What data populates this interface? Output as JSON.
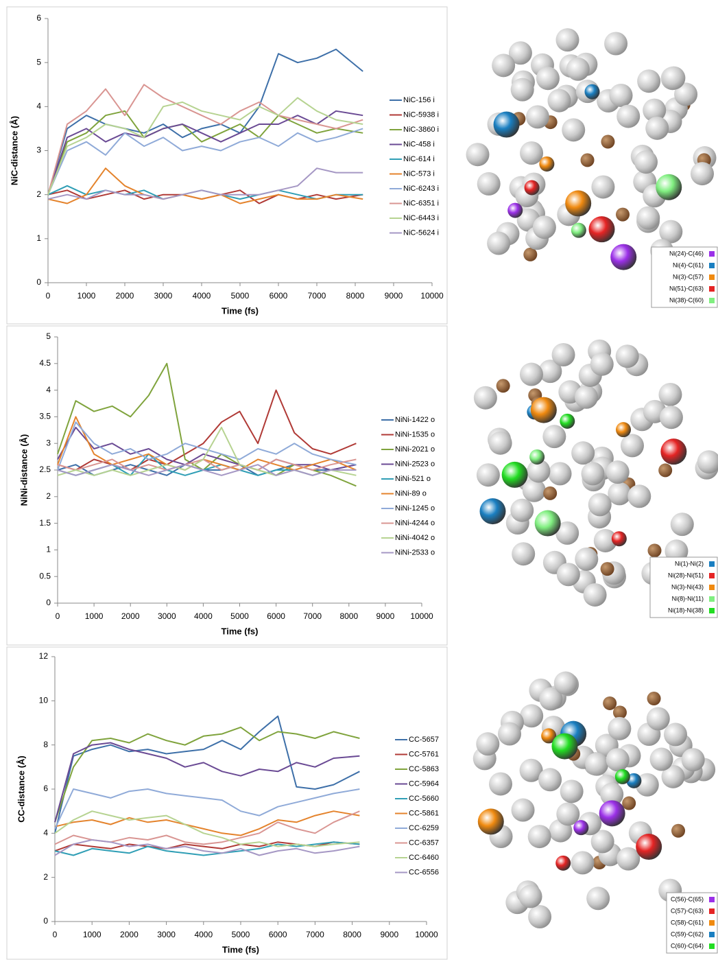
{
  "chart_data": [
    {
      "type": "line",
      "ylabel": "NiC-distance (Å)",
      "xlabel": "Time (fs)",
      "legend": "right",
      "xlim": [
        0,
        10000
      ],
      "xticks": [
        0,
        1000,
        2000,
        3000,
        4000,
        5000,
        6000,
        7000,
        8000,
        9000,
        10000
      ],
      "ylim": [
        0,
        6
      ],
      "yticks": [
        0,
        1,
        2,
        3,
        4,
        5,
        6
      ],
      "x": [
        0,
        500,
        1000,
        1500,
        2000,
        2500,
        3000,
        3500,
        4000,
        4500,
        5000,
        5500,
        6000,
        6500,
        7000,
        7500,
        8200
      ],
      "series": [
        {
          "name": "NiC-156 i",
          "color": "#3d6fa8",
          "values": [
            2,
            3.5,
            3.8,
            3.6,
            3.5,
            3.4,
            3.6,
            3.3,
            3.5,
            3.6,
            3.4,
            4.0,
            5.2,
            5.0,
            5.1,
            5.3,
            4.8
          ]
        },
        {
          "name": "NiC-5938 i",
          "color": "#b03a36",
          "values": [
            2,
            2.1,
            1.9,
            2.0,
            2.1,
            1.9,
            2.0,
            2.0,
            1.9,
            2.0,
            2.1,
            1.8,
            2.0,
            1.9,
            2.0,
            1.9,
            2.0
          ]
        },
        {
          "name": "NiC-3860 i",
          "color": "#7fa33c",
          "values": [
            2,
            3.2,
            3.4,
            3.8,
            3.9,
            3.3,
            3.5,
            3.6,
            3.2,
            3.4,
            3.6,
            3.3,
            3.8,
            3.6,
            3.4,
            3.5,
            3.4
          ]
        },
        {
          "name": "NiC-458 i",
          "color": "#6a4a94",
          "values": [
            2,
            3.3,
            3.5,
            3.2,
            3.4,
            3.3,
            3.5,
            3.6,
            3.4,
            3.2,
            3.4,
            3.6,
            3.6,
            3.8,
            3.6,
            3.9,
            3.8
          ]
        },
        {
          "name": "NiC-614 i",
          "color": "#2f9eb5",
          "values": [
            2,
            2.2,
            2.0,
            2.1,
            2.0,
            2.1,
            1.9,
            2.0,
            2.1,
            2.0,
            1.9,
            2.0,
            2.1,
            2.0,
            1.9,
            2.0,
            2.0
          ]
        },
        {
          "name": "NiC-573 i",
          "color": "#e4832c",
          "values": [
            1.9,
            1.8,
            2.0,
            2.6,
            2.2,
            2.0,
            1.9,
            2.0,
            1.9,
            2.0,
            1.8,
            1.9,
            2.0,
            1.9,
            1.9,
            2.0,
            1.9
          ]
        },
        {
          "name": "NiC-6243 i",
          "color": "#8faad8",
          "values": [
            2,
            3.0,
            3.2,
            2.9,
            3.4,
            3.1,
            3.3,
            3.0,
            3.1,
            3.0,
            3.2,
            3.3,
            3.1,
            3.4,
            3.2,
            3.3,
            3.5
          ]
        },
        {
          "name": "NiC-6351 i",
          "color": "#d99592",
          "values": [
            2,
            3.6,
            3.9,
            4.4,
            3.8,
            4.5,
            4.2,
            4.0,
            3.8,
            3.6,
            3.9,
            4.1,
            3.8,
            3.7,
            3.6,
            3.5,
            3.7
          ]
        },
        {
          "name": "NiC-6443 i",
          "color": "#b6d391",
          "values": [
            2,
            3.1,
            3.3,
            3.6,
            3.5,
            3.3,
            4.0,
            4.1,
            3.9,
            3.8,
            3.7,
            4.0,
            3.8,
            4.2,
            3.9,
            3.7,
            3.6
          ]
        },
        {
          "name": "NiC-5624 i",
          "color": "#a597c4",
          "values": [
            1.9,
            2.0,
            1.9,
            2.1,
            2.0,
            2.0,
            1.9,
            2.0,
            2.1,
            2.0,
            2.0,
            2.0,
            2.1,
            2.2,
            2.6,
            2.5,
            2.5
          ]
        }
      ]
    },
    {
      "type": "line",
      "ylabel": "NiNi-distance (Å)",
      "xlabel": "Time (fs)",
      "legend": "right",
      "xlim": [
        0,
        10000
      ],
      "xticks": [
        0,
        1000,
        2000,
        3000,
        4000,
        5000,
        6000,
        7000,
        8000,
        9000,
        10000
      ],
      "ylim": [
        0,
        5
      ],
      "yticks": [
        0,
        0.5,
        1,
        1.5,
        2,
        2.5,
        3,
        3.5,
        4,
        4.5,
        5
      ],
      "x": [
        0,
        500,
        1000,
        1500,
        2000,
        2500,
        3000,
        3500,
        4000,
        4500,
        5000,
        5500,
        6000,
        6500,
        7000,
        7500,
        8200
      ],
      "series": [
        {
          "name": "NiNi-1422 o",
          "color": "#3d6fa8",
          "values": [
            2.5,
            2.6,
            2.4,
            2.5,
            2.6,
            2.5,
            2.4,
            2.6,
            2.5,
            2.5,
            2.6,
            2.4,
            2.5,
            2.6,
            2.5,
            2.5,
            2.6
          ]
        },
        {
          "name": "NiNi-1535 o",
          "color": "#b03a36",
          "values": [
            2.6,
            2.5,
            2.7,
            2.6,
            2.5,
            2.7,
            2.6,
            2.8,
            3.0,
            3.4,
            3.6,
            3.0,
            4.0,
            3.2,
            2.9,
            2.8,
            3.0
          ]
        },
        {
          "name": "NiNi-2021 o",
          "color": "#7fa33c",
          "values": [
            2.8,
            3.8,
            3.6,
            3.7,
            3.5,
            3.9,
            4.5,
            2.7,
            2.5,
            2.8,
            2.6,
            2.5,
            2.4,
            2.6,
            2.5,
            2.4,
            2.2
          ]
        },
        {
          "name": "NiNi-2523 o",
          "color": "#6a4a94",
          "values": [
            2.7,
            3.3,
            2.9,
            3.0,
            2.8,
            2.9,
            2.7,
            2.6,
            2.8,
            2.7,
            2.6,
            2.5,
            2.7,
            2.6,
            2.6,
            2.5,
            2.6
          ]
        },
        {
          "name": "NiNi-521 o",
          "color": "#2f9eb5",
          "values": [
            2.5,
            2.4,
            2.5,
            2.6,
            2.4,
            2.8,
            2.5,
            2.4,
            2.5,
            2.6,
            2.5,
            2.4,
            2.5,
            2.5,
            2.4,
            2.5,
            2.5
          ]
        },
        {
          "name": "NiNi-89 o",
          "color": "#e4832c",
          "values": [
            2.6,
            3.5,
            2.8,
            2.6,
            2.7,
            2.8,
            2.6,
            2.5,
            2.7,
            2.6,
            2.5,
            2.7,
            2.6,
            2.5,
            2.6,
            2.7,
            2.5
          ]
        },
        {
          "name": "NiNi-1245 o",
          "color": "#8faad8",
          "values": [
            2.5,
            3.4,
            3.0,
            2.8,
            2.9,
            2.7,
            2.8,
            3.0,
            2.9,
            2.8,
            2.7,
            2.9,
            2.8,
            3.0,
            2.8,
            2.7,
            2.6
          ]
        },
        {
          "name": "NiNi-4244 o",
          "color": "#d99592",
          "values": [
            2.6,
            2.5,
            2.6,
            2.7,
            2.5,
            2.6,
            2.5,
            2.6,
            2.7,
            2.5,
            2.6,
            2.5,
            2.7,
            2.6,
            2.5,
            2.6,
            2.7
          ]
        },
        {
          "name": "NiNi-4042 o",
          "color": "#b6d391",
          "values": [
            2.4,
            2.5,
            2.4,
            2.5,
            2.4,
            2.5,
            2.6,
            2.5,
            2.7,
            3.3,
            2.6,
            2.5,
            2.4,
            2.5,
            2.4,
            2.5,
            2.4
          ]
        },
        {
          "name": "NiNi-2533 o",
          "color": "#a597c4",
          "values": [
            2.5,
            2.4,
            2.5,
            2.6,
            2.5,
            2.4,
            2.5,
            2.6,
            2.5,
            2.4,
            2.5,
            2.6,
            2.4,
            2.5,
            2.4,
            2.5,
            2.5
          ]
        }
      ]
    },
    {
      "type": "line",
      "ylabel": "CC-distance (Å)",
      "xlabel": "Time (fs)",
      "legend": "right",
      "xlim": [
        0,
        10000
      ],
      "xticks": [
        0,
        1000,
        2000,
        3000,
        4000,
        5000,
        6000,
        7000,
        8000,
        9000,
        10000
      ],
      "ylim": [
        0,
        12
      ],
      "yticks": [
        0,
        2,
        4,
        6,
        8,
        10,
        12
      ],
      "x": [
        0,
        500,
        1000,
        1500,
        2000,
        2500,
        3000,
        3500,
        4000,
        4500,
        5000,
        5500,
        6000,
        6500,
        7000,
        7500,
        8200
      ],
      "series": [
        {
          "name": "CC-5657",
          "color": "#3d6fa8",
          "values": [
            4.0,
            7.5,
            7.8,
            8.0,
            7.7,
            7.8,
            7.6,
            7.7,
            7.8,
            8.2,
            7.8,
            8.6,
            9.3,
            6.1,
            6.0,
            6.2,
            6.8
          ]
        },
        {
          "name": "CC-5761",
          "color": "#b03a36",
          "values": [
            3.2,
            3.5,
            3.4,
            3.3,
            3.5,
            3.4,
            3.3,
            3.5,
            3.4,
            3.3,
            3.5,
            3.4,
            3.6,
            3.5,
            3.4,
            3.6,
            3.5
          ]
        },
        {
          "name": "CC-5863",
          "color": "#7fa33c",
          "values": [
            4.5,
            7.0,
            8.2,
            8.3,
            8.1,
            8.5,
            8.2,
            8.0,
            8.4,
            8.5,
            8.8,
            8.2,
            8.6,
            8.5,
            8.3,
            8.6,
            8.3
          ]
        },
        {
          "name": "CC-5964",
          "color": "#6a4a94",
          "values": [
            4.5,
            7.6,
            8.0,
            8.1,
            7.8,
            7.6,
            7.4,
            7.0,
            7.2,
            6.8,
            6.6,
            6.9,
            6.8,
            7.2,
            7.0,
            7.4,
            7.5
          ]
        },
        {
          "name": "CC-5660",
          "color": "#2f9eb5",
          "values": [
            3.2,
            3.0,
            3.3,
            3.2,
            3.1,
            3.4,
            3.2,
            3.1,
            3.0,
            3.1,
            3.2,
            3.3,
            3.5,
            3.4,
            3.5,
            3.6,
            3.5
          ]
        },
        {
          "name": "CC-5861",
          "color": "#e4832c",
          "values": [
            4.3,
            4.5,
            4.6,
            4.4,
            4.7,
            4.5,
            4.6,
            4.4,
            4.2,
            4.0,
            3.9,
            4.2,
            4.6,
            4.5,
            4.8,
            5.0,
            4.8
          ]
        },
        {
          "name": "CC-6259",
          "color": "#8faad8",
          "values": [
            4.2,
            6.0,
            5.8,
            5.6,
            5.9,
            6.0,
            5.8,
            5.7,
            5.6,
            5.5,
            5.0,
            4.8,
            5.2,
            5.4,
            5.6,
            5.8,
            6.0
          ]
        },
        {
          "name": "CC-6357",
          "color": "#d99592",
          "values": [
            3.5,
            3.9,
            3.7,
            3.6,
            3.8,
            3.7,
            3.9,
            3.6,
            3.5,
            3.6,
            3.8,
            4.0,
            4.5,
            4.2,
            4.0,
            4.5,
            5.0
          ]
        },
        {
          "name": "CC-6460",
          "color": "#b6d391",
          "values": [
            4.0,
            4.6,
            5.0,
            4.8,
            4.6,
            4.7,
            4.8,
            4.4,
            4.0,
            3.8,
            3.5,
            3.6,
            3.4,
            3.5,
            3.4,
            3.5,
            3.6
          ]
        },
        {
          "name": "CC-6556",
          "color": "#a597c4",
          "values": [
            3.0,
            3.5,
            3.7,
            3.6,
            3.4,
            3.5,
            3.3,
            3.4,
            3.2,
            3.1,
            3.3,
            3.0,
            3.2,
            3.3,
            3.1,
            3.2,
            3.4
          ]
        }
      ]
    }
  ],
  "structures": [
    {
      "legend": [
        {
          "label": "Ni(24)-C(46)",
          "color": "#9b30e8"
        },
        {
          "label": "Ni(4)-C(61)",
          "color": "#1a7fc1"
        },
        {
          "label": "Ni(3)-C(57)",
          "color": "#f08a10"
        },
        {
          "label": "Ni(51)-C(63)",
          "color": "#e52424"
        },
        {
          "label": "Ni(38)-C(60)",
          "color": "#80ef80"
        }
      ]
    },
    {
      "legend": [
        {
          "label": "Ni(1)-Ni(2)",
          "color": "#1a7fc1"
        },
        {
          "label": "Ni(28)-Ni(51)",
          "color": "#e52424"
        },
        {
          "label": "Ni(3)-Ni(43)",
          "color": "#f08a10"
        },
        {
          "label": "Ni(8)-Ni(11)",
          "color": "#80ef80"
        },
        {
          "label": "Ni(18)-Ni(38)",
          "color": "#22dd22"
        }
      ]
    },
    {
      "legend": [
        {
          "label": "C(56)-C(65)",
          "color": "#9b30e8"
        },
        {
          "label": "C(57)-C(63)",
          "color": "#e52424"
        },
        {
          "label": "C(58)-C(61)",
          "color": "#f08a10"
        },
        {
          "label": "C(59)-C(62)",
          "color": "#1a7fc1"
        },
        {
          "label": "C(60)-C(64)",
          "color": "#22dd22"
        }
      ]
    }
  ]
}
